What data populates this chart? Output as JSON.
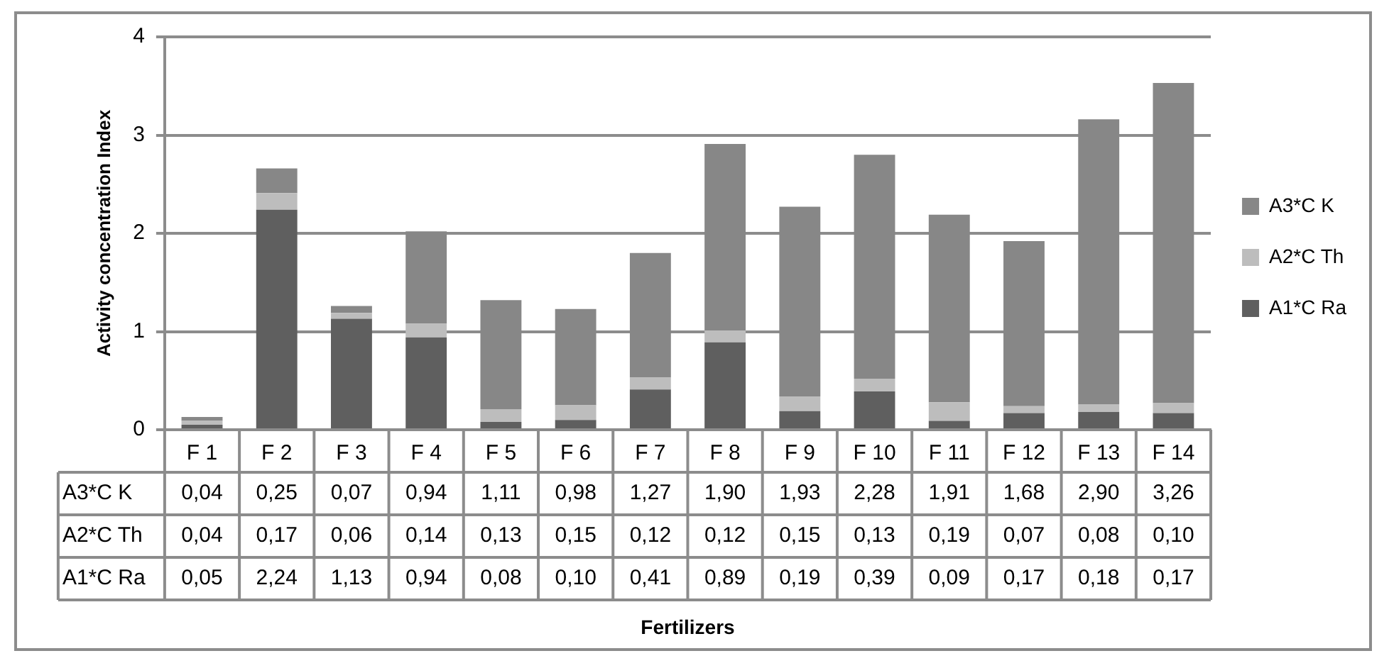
{
  "chart_data": {
    "type": "bar",
    "stacked": true,
    "annotations": [
      "Fertilizers"
    ],
    "ylabel": "Activity concentration Index",
    "categories": [
      "F 1",
      "F 2",
      "F 3",
      "F 4",
      "F 5",
      "F 6",
      "F 7",
      "F 8",
      "F 9",
      "F 10",
      "F 11",
      "F 12",
      "F 13",
      "F 14"
    ],
    "series": [
      {
        "name": "A1*C Ra",
        "color": "#5f5f5f",
        "values": [
          0.05,
          2.24,
          1.13,
          0.94,
          0.08,
          0.1,
          0.41,
          0.89,
          0.19,
          0.39,
          0.09,
          0.17,
          0.18,
          0.17
        ],
        "value_labels": [
          "0,05",
          "2,24",
          "1,13",
          "0,94",
          "0,08",
          "0,10",
          "0,41",
          "0,89",
          "0,19",
          "0,39",
          "0,09",
          "0,17",
          "0,18",
          "0,17"
        ]
      },
      {
        "name": "A2*C Th",
        "color": "#bdbdbd",
        "values": [
          0.04,
          0.17,
          0.06,
          0.14,
          0.13,
          0.15,
          0.12,
          0.12,
          0.15,
          0.13,
          0.19,
          0.07,
          0.08,
          0.1
        ],
        "value_labels": [
          "0,04",
          "0,17",
          "0,06",
          "0,14",
          "0,13",
          "0,15",
          "0,12",
          "0,12",
          "0,15",
          "0,13",
          "0,19",
          "0,07",
          "0,08",
          "0,10"
        ]
      },
      {
        "name": "A3*C K",
        "color": "#878787",
        "values": [
          0.04,
          0.25,
          0.07,
          0.94,
          1.11,
          0.98,
          1.27,
          1.9,
          1.93,
          2.28,
          1.91,
          1.68,
          2.9,
          3.26
        ],
        "value_labels": [
          "0,04",
          "0,25",
          "0,07",
          "0,94",
          "1,11",
          "0,98",
          "1,27",
          "1,90",
          "1,93",
          "2,28",
          "1,91",
          "1,68",
          "2,90",
          "3,26"
        ]
      }
    ],
    "ylim": [
      0,
      4
    ],
    "yticks": [
      0,
      1,
      2,
      3,
      4
    ],
    "grid": "y",
    "legend": "right"
  }
}
